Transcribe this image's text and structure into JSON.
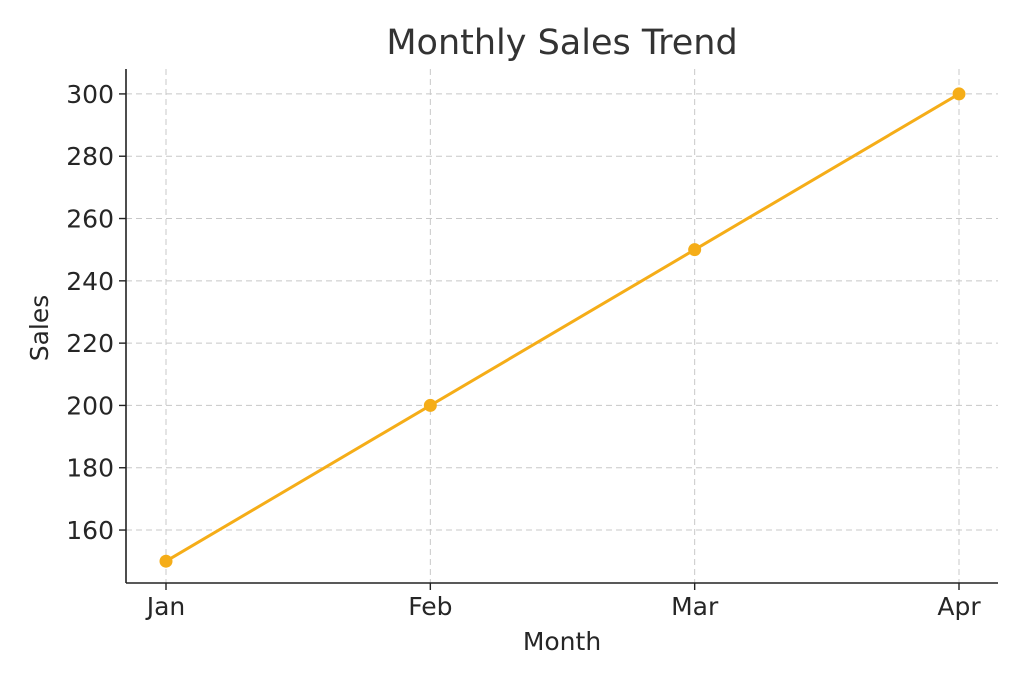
{
  "chart_data": {
    "type": "line",
    "title": "Monthly Sales Trend",
    "xlabel": "Month",
    "ylabel": "Sales",
    "categories": [
      "Jan",
      "Feb",
      "Mar",
      "Apr"
    ],
    "series": [
      {
        "values": [
          150,
          200,
          250,
          300
        ]
      }
    ],
    "ylim": [
      143,
      308
    ],
    "yticks": [
      160,
      180,
      200,
      220,
      240,
      260,
      280,
      300
    ],
    "grid": true,
    "legend": "none",
    "colors": {
      "line": "#f5ad18",
      "marker": "#f5ad18",
      "grid": "#c8c8c8",
      "axis": "#222222",
      "text": "#262626",
      "title": "#333333"
    }
  }
}
